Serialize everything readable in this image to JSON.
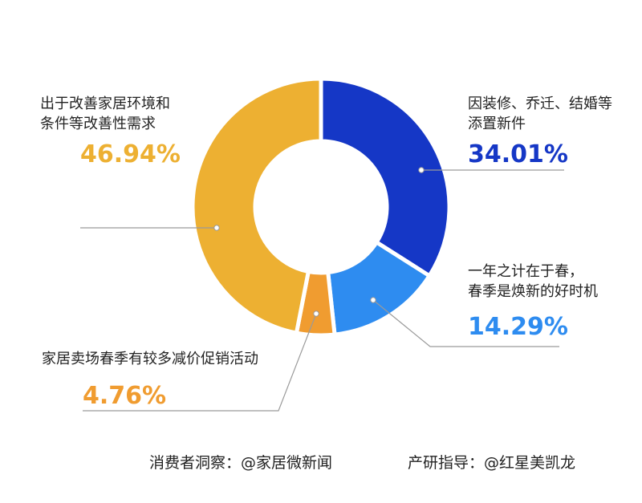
{
  "chart_data": {
    "type": "pie",
    "variant": "donut",
    "slices": [
      {
        "label_line1": "因装修、乔迁、结婚等",
        "label_line2": "添置新件",
        "value": 34.01,
        "value_label": "34.01%",
        "color": "#1537c6"
      },
      {
        "label_line1": "一年之计在于春，",
        "label_line2": "春季是焕新的好时机",
        "value": 14.29,
        "value_label": "14.29%",
        "color": "#2e8cf0"
      },
      {
        "label_line1": "家居卖场春季有较多减价促销活动",
        "label_line2": "",
        "value": 4.76,
        "value_label": "4.76%",
        "color": "#f09c30"
      },
      {
        "label_line1": "出于改善家居环境和",
        "label_line2": "条件等改善性需求",
        "value": 46.94,
        "value_label": "46.94%",
        "color": "#edb032"
      }
    ]
  },
  "footer": {
    "source": "消费者洞察：@家居微新闻",
    "guide": "产研指导：@红星美凯龙"
  },
  "colors": {
    "leader_line": "#9a9a9a",
    "dot": "#ffffff"
  }
}
